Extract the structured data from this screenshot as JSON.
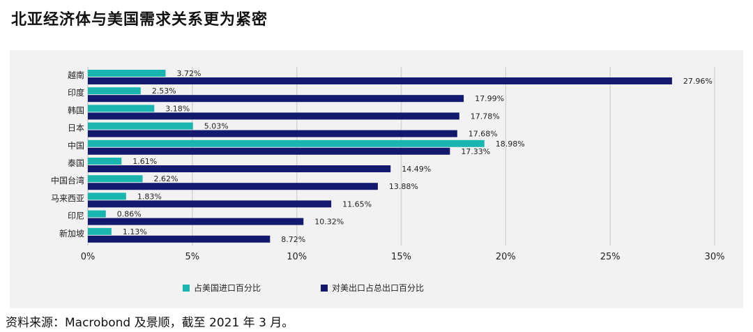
{
  "title": "北亚经济体与美国需求关系更为紧密",
  "source": "资料来源：Macrobond 及景顺，截至 2021 年 3 月。",
  "colors": {
    "import": "#1bb5b0",
    "export": "#131a6e",
    "panel": "#f2f2f2",
    "grid": "#d4d4d4"
  },
  "chart_data": {
    "type": "bar",
    "orientation": "horizontal",
    "title": "北亚经济体与美国需求关系更为紧密",
    "categories": [
      "越南",
      "印度",
      "韩国",
      "日本",
      "中国",
      "泰国",
      "中国台湾",
      "马来西亚",
      "印尼",
      "新加坡"
    ],
    "series": [
      {
        "name": "占美国进口百分比",
        "values": [
          3.72,
          2.53,
          3.18,
          5.03,
          18.98,
          1.61,
          2.62,
          1.83,
          0.86,
          1.13
        ],
        "labels": [
          "3.72%",
          "2.53%",
          "3.18%",
          "5.03%",
          "18.98%",
          "1.61%",
          "2.62%",
          "1.83%",
          "0.86%",
          "1.13%"
        ]
      },
      {
        "name": "对美出口占总出口百分比",
        "values": [
          27.96,
          17.99,
          17.78,
          17.68,
          17.33,
          14.49,
          13.88,
          11.65,
          10.32,
          8.72
        ],
        "labels": [
          "27.96%",
          "17.99%",
          "17.78%",
          "17.68%",
          "17.33%",
          "14.49%",
          "13.88%",
          "11.65%",
          "10.32%",
          "8.72%"
        ]
      }
    ],
    "xlim": [
      0,
      30
    ],
    "xticks": [
      0,
      5,
      10,
      15,
      20,
      25,
      30
    ],
    "xtick_labels": [
      "0%",
      "5%",
      "10%",
      "15%",
      "20%",
      "25%",
      "30%"
    ],
    "grid": true,
    "legend_position": "bottom"
  }
}
